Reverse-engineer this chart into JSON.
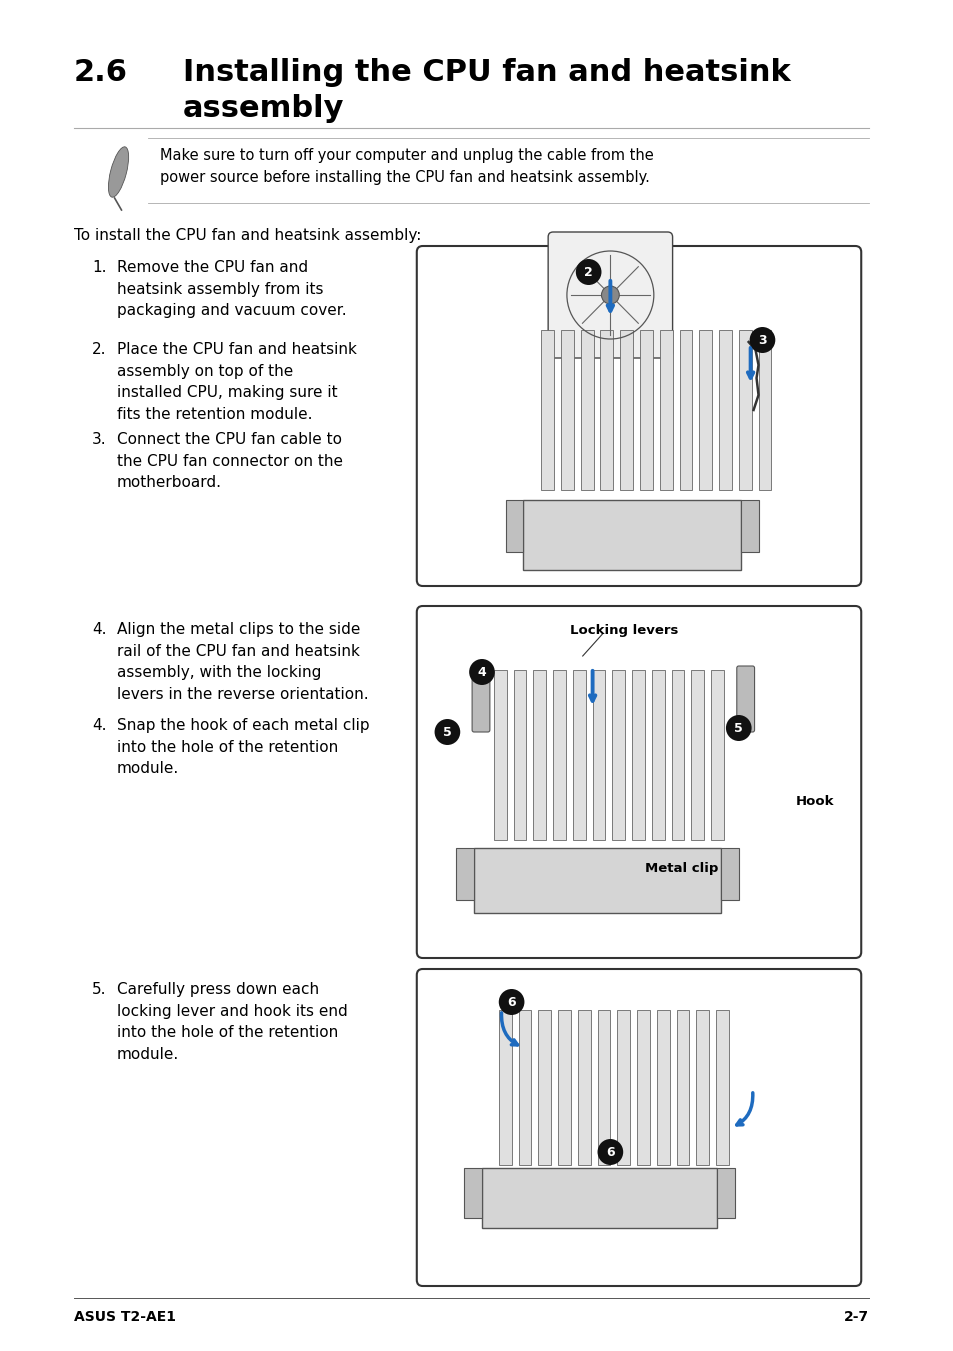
{
  "page_bg": "#ffffff",
  "title_number": "2.6",
  "title_text": "Installing the CPU fan and heatsink\nassembly",
  "title_fontsize": 22,
  "note_text": "Make sure to turn off your computer and unplug the cable from the\npower source before installing the CPU fan and heatsink assembly.",
  "note_fontsize": 10.5,
  "intro_text": "To install the CPU fan and heatsink assembly:",
  "intro_fontsize": 11,
  "steps": [
    {
      "num": "1.",
      "text": "Remove the CPU fan and\nheatsink assembly from its\npackaging and vacuum cover."
    },
    {
      "num": "2.",
      "text": "Place the CPU fan and heatsink\nassembly on top of the\ninstalled CPU, making sure it\nfits the retention module."
    },
    {
      "num": "3.",
      "text": "Connect the CPU fan cable to\nthe CPU fan connector on the\nmotherboard."
    },
    {
      "num": "4.",
      "text": "Align the metal clips to the side\nrail of the CPU fan and heatsink\nassembly, with the locking\nlevers in the reverse orientation."
    },
    {
      "num": "4.",
      "text": "Snap the hook of each metal clip\ninto the hole of the retention\nmodule."
    },
    {
      "num": "5.",
      "text": "Carefully press down each\nlocking lever and hook its end\ninto the hole of the retention\nmodule."
    }
  ],
  "step_fontsize": 11,
  "footer_left": "ASUS T2-AE1",
  "footer_right": "2-7",
  "footer_fontsize": 10,
  "text_color": "#000000",
  "diagram1_label_locking": "Locking levers",
  "diagram1_label_hook": "Hook",
  "diagram1_label_clip": "Metal clip"
}
